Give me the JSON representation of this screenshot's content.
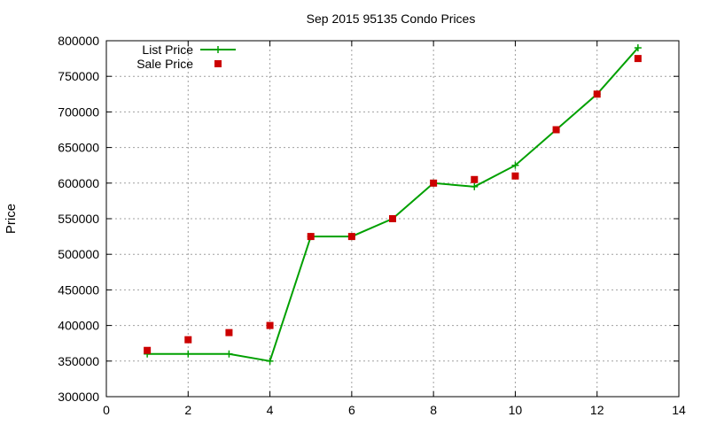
{
  "chart_data": {
    "type": "line",
    "title": "Sep 2015 95135 Condo Prices",
    "xlabel": "",
    "ylabel": "Price",
    "xlim": [
      0,
      14
    ],
    "ylim": [
      300000,
      800000
    ],
    "x_ticks": [
      0,
      2,
      4,
      6,
      8,
      10,
      12,
      14
    ],
    "y_ticks": [
      300000,
      350000,
      400000,
      450000,
      500000,
      550000,
      600000,
      650000,
      700000,
      750000,
      800000
    ],
    "grid": true,
    "legend_position": "top-left",
    "series": [
      {
        "name": "List Price",
        "style": "line-with-plus-markers",
        "color": "#00a000",
        "x": [
          1,
          2,
          3,
          4,
          5,
          6,
          7,
          8,
          9,
          10,
          11,
          12,
          13
        ],
        "y": [
          360000,
          360000,
          360000,
          350000,
          525000,
          525000,
          550000,
          600000,
          595000,
          625000,
          675000,
          725000,
          790000
        ]
      },
      {
        "name": "Sale Price",
        "style": "square-markers",
        "color": "#cc0000",
        "x": [
          1,
          2,
          3,
          4,
          5,
          6,
          7,
          8,
          9,
          10,
          11,
          12,
          13
        ],
        "y": [
          365000,
          380000,
          390000,
          400000,
          525000,
          525000,
          550000,
          600000,
          605000,
          610000,
          675000,
          725000,
          775000
        ]
      }
    ]
  }
}
